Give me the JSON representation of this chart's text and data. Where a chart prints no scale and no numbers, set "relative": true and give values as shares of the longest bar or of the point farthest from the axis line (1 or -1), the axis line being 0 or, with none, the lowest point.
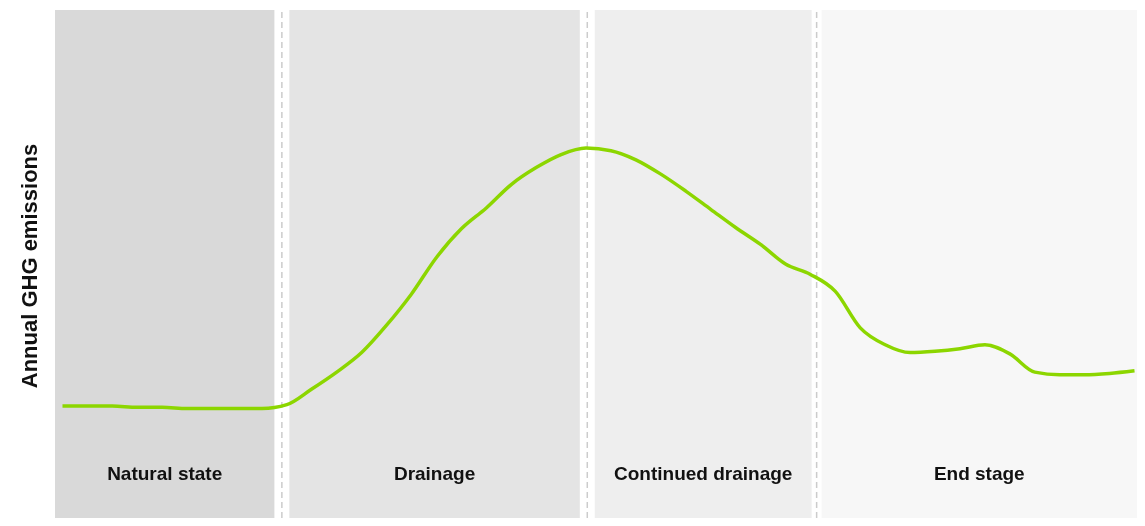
{
  "chart_data": {
    "type": "line",
    "ylabel": "Annual GHG emissions",
    "relative": true,
    "categories": [
      null,
      null,
      null,
      null,
      null,
      null,
      null,
      null,
      null,
      null,
      null,
      null,
      null,
      null,
      null,
      null,
      null,
      null,
      null,
      null,
      null,
      null,
      null,
      null,
      null,
      null,
      null,
      null,
      null,
      null,
      null,
      null,
      null,
      null,
      null,
      null,
      null,
      null,
      null,
      null,
      null,
      null,
      null,
      null
    ],
    "series": [
      {
        "color": "#8cd600",
        "values": [
          0.01,
          0.01,
          0.01,
          0.005,
          0.005,
          0,
          0,
          0,
          0,
          0.015,
          0.075,
          0.14,
          0.215,
          0.32,
          0.44,
          0.58,
          0.69,
          0.77,
          0.86,
          0.925,
          0.975,
          1,
          0.99,
          0.955,
          0.9,
          0.835,
          0.765,
          0.695,
          0.63,
          0.555,
          0.515,
          0.45,
          0.31,
          0.245,
          0.215,
          0.22,
          0.23,
          0.245,
          0.21,
          0.14,
          0.13,
          0.13,
          0.135,
          0.145
        ]
      }
    ],
    "annotations": [
      "Natural state",
      "Drainage",
      "Continued drainage",
      "End stage"
    ],
    "legend": false,
    "grid": false,
    "marker": "none",
    "line_style": "solid",
    "tick_labels": false
  }
}
